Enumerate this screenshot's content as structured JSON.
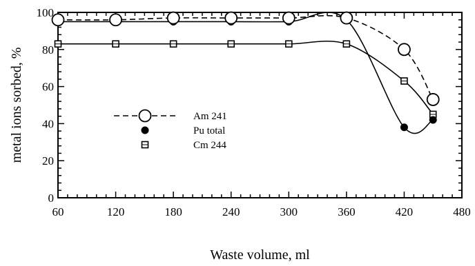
{
  "chart_data": {
    "type": "line",
    "xlabel": "Waste volume, ml",
    "ylabel": "metal ions sorbed, %",
    "xlim": [
      60,
      480
    ],
    "ylim": [
      0,
      100
    ],
    "x_ticks": [
      60,
      120,
      180,
      240,
      300,
      360,
      420,
      480
    ],
    "y_ticks": [
      0,
      20,
      40,
      60,
      80,
      100
    ],
    "grid": false,
    "legend_position": "center-left",
    "series": [
      {
        "name": "Am 241",
        "marker": "open-circle",
        "line": "dashed",
        "color": "#000000",
        "x": [
          60,
          120,
          180,
          240,
          300,
          360,
          420,
          450
        ],
        "y": [
          96,
          96,
          97,
          97,
          97,
          97,
          80,
          53
        ]
      },
      {
        "name": "Pu total",
        "marker": "filled-circle",
        "line": "solid",
        "color": "#000000",
        "x": [
          60,
          120,
          180,
          240,
          300,
          360,
          420,
          450
        ],
        "y": [
          95,
          95,
          95,
          95,
          95,
          96,
          38,
          42
        ]
      },
      {
        "name": "Cm 244",
        "marker": "open-square",
        "line": "solid",
        "color": "#000000",
        "x": [
          60,
          120,
          180,
          240,
          300,
          360,
          420,
          450
        ],
        "y": [
          83,
          83,
          83,
          83,
          83,
          83,
          63,
          45
        ]
      }
    ]
  }
}
